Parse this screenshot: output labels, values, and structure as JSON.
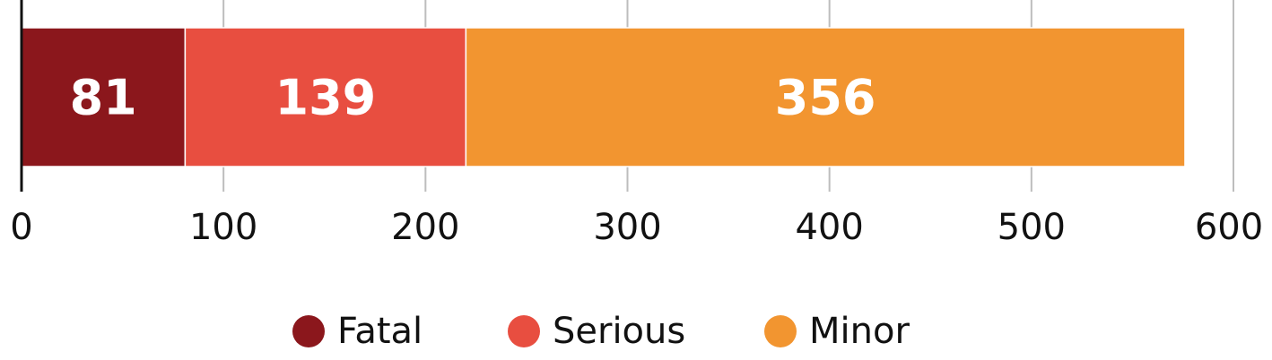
{
  "chart_data": {
    "type": "bar",
    "orientation": "horizontal",
    "stacked": true,
    "title": "",
    "xlabel": "",
    "ylabel": "",
    "xlim": [
      0,
      600
    ],
    "xticks": [
      0,
      100,
      200,
      300,
      400,
      500,
      600
    ],
    "xtick_labels": [
      "0",
      "100",
      "200",
      "300",
      "400",
      "500",
      "600"
    ],
    "grid": true,
    "legend_position": "bottom-center",
    "series": [
      {
        "name": "Fatal",
        "values": [
          81
        ],
        "color": "#8b171c",
        "label": "81"
      },
      {
        "name": "Serious",
        "values": [
          139
        ],
        "color": "#e84e40",
        "label": "139"
      },
      {
        "name": "Minor",
        "values": [
          356
        ],
        "color": "#f29530",
        "label": "356"
      }
    ]
  }
}
